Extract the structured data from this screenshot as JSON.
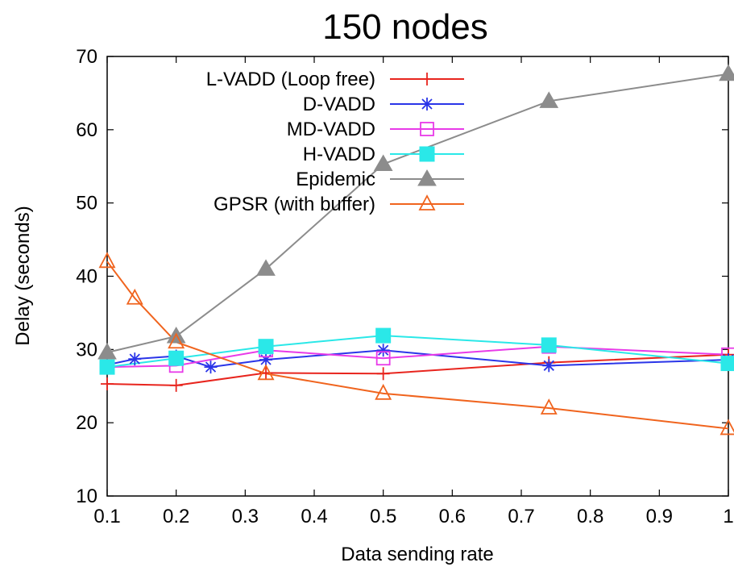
{
  "chart_data": {
    "type": "line",
    "title": "150 nodes",
    "xlabel": "Data sending rate",
    "ylabel": "Delay (seconds)",
    "xlim": [
      0.1,
      1
    ],
    "ylim": [
      10,
      70
    ],
    "xticks": [
      0.1,
      0.2,
      0.3,
      0.4,
      0.5,
      0.6,
      0.7,
      0.8,
      0.9,
      1
    ],
    "xtick_labels": [
      "0.1",
      "0.2",
      "0.3",
      "0.4",
      "0.5",
      "0.6",
      "0.7",
      "0.8",
      "0.9",
      "1"
    ],
    "yticks": [
      10,
      20,
      30,
      40,
      50,
      60,
      70
    ],
    "ytick_labels": [
      "10",
      "20",
      "30",
      "40",
      "50",
      "60",
      "70"
    ],
    "grid": false,
    "legend_position": "top-left",
    "series": [
      {
        "name": "L-VADD (Loop free)",
        "color": "#e8251e",
        "marker": "plus",
        "x": [
          0.1,
          0.2,
          0.33,
          0.5,
          0.74,
          1.0
        ],
        "y": [
          25.3,
          25.1,
          26.8,
          26.7,
          28.2,
          29.3
        ]
      },
      {
        "name": "D-VADD",
        "color": "#2a35e8",
        "marker": "asterisk",
        "x": [
          0.1,
          0.14,
          0.2,
          0.25,
          0.33,
          0.5,
          0.74,
          1.0
        ],
        "y": [
          27.9,
          28.7,
          29.1,
          27.6,
          28.6,
          29.9,
          27.8,
          28.6
        ]
      },
      {
        "name": "MD-VADD",
        "color": "#e83ae8",
        "marker": "square-open",
        "x": [
          0.1,
          0.2,
          0.33,
          0.5,
          0.74,
          1.0
        ],
        "y": [
          27.6,
          27.8,
          29.9,
          28.8,
          30.4,
          29.3
        ]
      },
      {
        "name": "H-VADD",
        "color": "#2ae8e8",
        "marker": "square-filled",
        "x": [
          0.1,
          0.2,
          0.33,
          0.5,
          0.74,
          1.0
        ],
        "y": [
          27.6,
          28.8,
          30.4,
          31.9,
          30.6,
          28.1
        ]
      },
      {
        "name": "Epidemic",
        "color": "#8c8c8c",
        "marker": "triangle-filled",
        "x": [
          0.1,
          0.2,
          0.33,
          0.5,
          0.74,
          1.0
        ],
        "y": [
          29.6,
          31.8,
          41.0,
          55.3,
          63.9,
          67.6
        ]
      },
      {
        "name": "GPSR (with buffer)",
        "color": "#f0641e",
        "marker": "triangle-open",
        "x": [
          0.1,
          0.14,
          0.2,
          0.33,
          0.5,
          0.74,
          1.0
        ],
        "y": [
          42.0,
          37.0,
          31.0,
          26.7,
          24.0,
          22.0,
          19.2
        ]
      }
    ]
  }
}
